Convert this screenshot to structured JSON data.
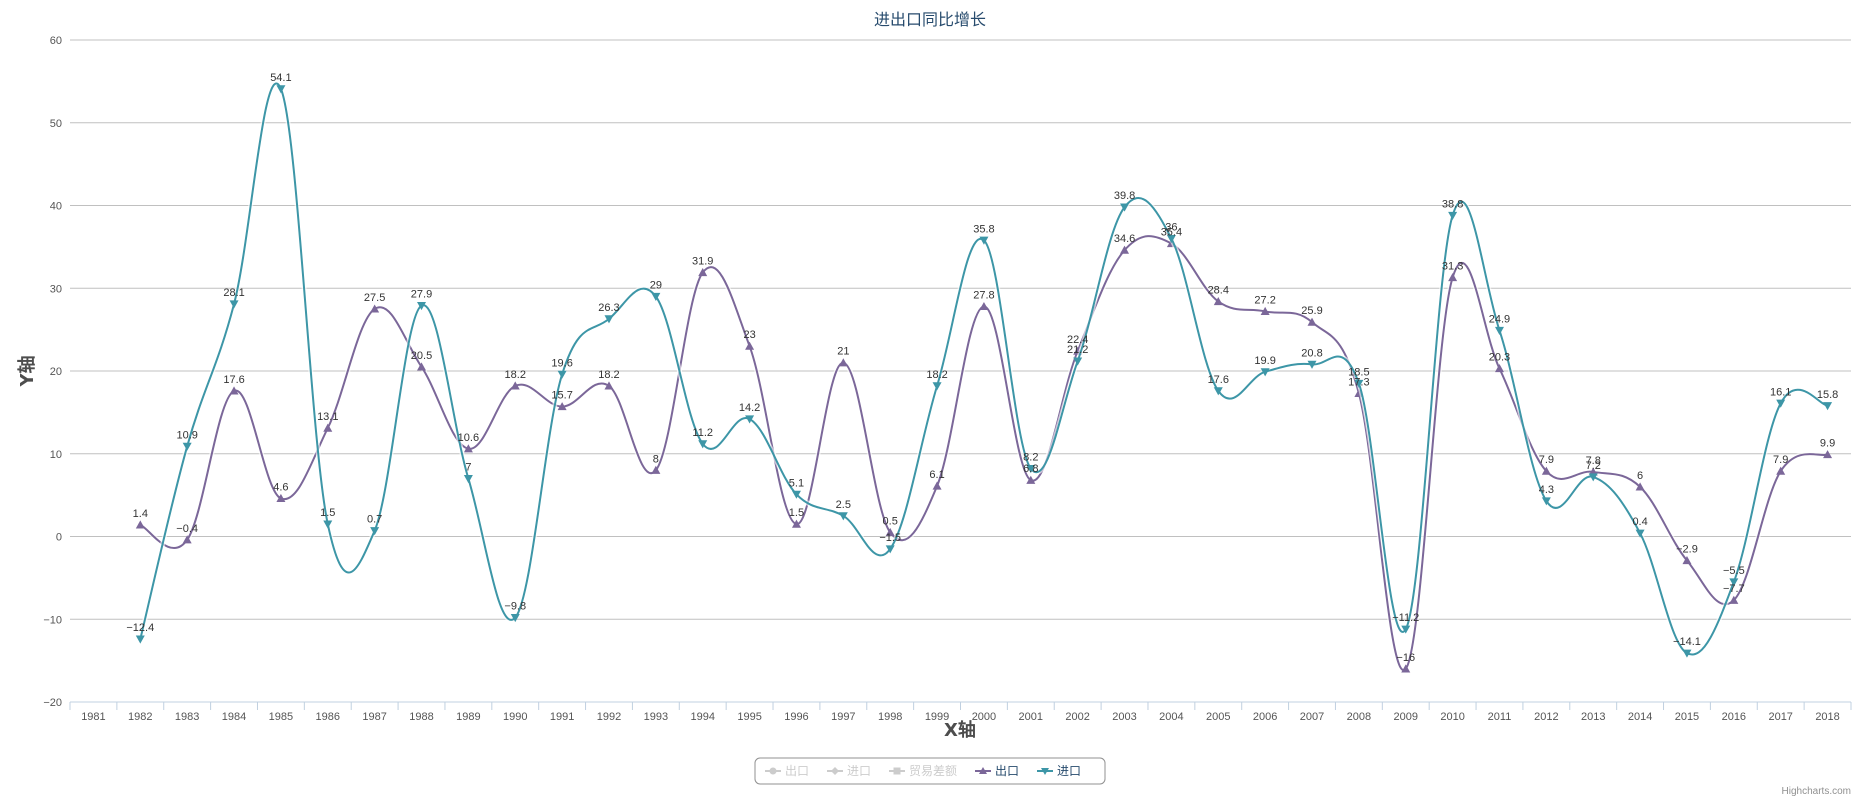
{
  "chart_data": {
    "type": "line",
    "title": "进出口同比增长",
    "xlabel": "X轴",
    "ylabel": "Y轴",
    "ylim": [
      -20,
      60
    ],
    "yticks": [
      -20,
      -10,
      0,
      10,
      20,
      30,
      40,
      50,
      60
    ],
    "categories": [
      "1981",
      "1982",
      "1983",
      "1984",
      "1985",
      "1986",
      "1987",
      "1988",
      "1989",
      "1990",
      "1991",
      "1992",
      "1993",
      "1994",
      "1995",
      "1996",
      "1997",
      "1998",
      "1999",
      "2000",
      "2001",
      "2002",
      "2003",
      "2004",
      "2005",
      "2006",
      "2007",
      "2008",
      "2009",
      "2010",
      "2011",
      "2012",
      "2013",
      "2014",
      "2015",
      "2016",
      "2017",
      "2018"
    ],
    "legend_placement": "bottom-center",
    "grid": true,
    "legend_items": [
      {
        "label": "出口",
        "color": "#cccccc",
        "marker": "circle",
        "visible": false
      },
      {
        "label": "进口",
        "color": "#cccccc",
        "marker": "diamond",
        "visible": false
      },
      {
        "label": "贸易差额",
        "color": "#cccccc",
        "marker": "square",
        "visible": false
      },
      {
        "label": "出口",
        "color": "#7b6799",
        "marker": "triangle",
        "visible": true
      },
      {
        "label": "进口",
        "color": "#3d96a7",
        "marker": "triangle-down",
        "visible": true
      }
    ],
    "series": [
      {
        "name": "出口",
        "color": "#7b6799",
        "marker": "triangle",
        "values": [
          null,
          1.4,
          -0.4,
          17.6,
          4.6,
          13.1,
          27.5,
          20.5,
          10.6,
          18.2,
          15.7,
          18.2,
          8,
          31.9,
          23,
          1.5,
          21,
          0.5,
          6.1,
          27.8,
          6.8,
          22.4,
          34.6,
          35.4,
          28.4,
          27.2,
          25.9,
          17.3,
          -16,
          31.3,
          20.3,
          7.9,
          7.8,
          6,
          -2.9,
          -7.7,
          7.9,
          9.9
        ]
      },
      {
        "name": "进口",
        "color": "#3d96a7",
        "marker": "triangle-down",
        "values": [
          null,
          -12.4,
          10.9,
          28.1,
          54.1,
          1.5,
          0.7,
          27.9,
          7,
          -9.8,
          19.6,
          26.3,
          29,
          11.2,
          14.2,
          5.1,
          2.5,
          -1.5,
          18.2,
          35.8,
          8.2,
          21.2,
          39.8,
          36,
          17.6,
          19.9,
          20.8,
          18.5,
          -11.2,
          38.8,
          24.9,
          4.3,
          7.2,
          0.4,
          -14.1,
          -5.5,
          16.1,
          15.8
        ]
      }
    ]
  },
  "credits": "Highcharts.com"
}
